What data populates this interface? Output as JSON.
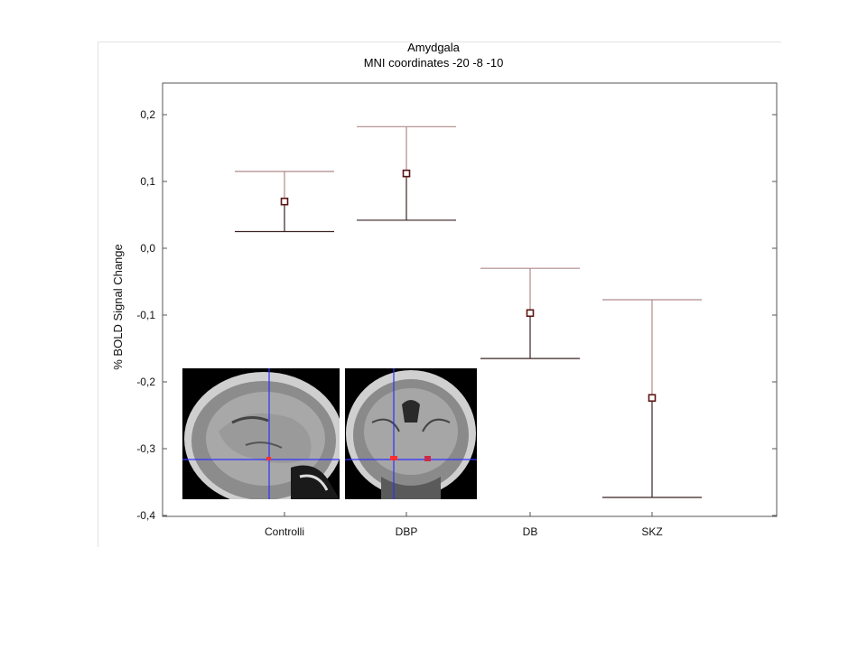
{
  "chart_data": {
    "type": "scatter",
    "title": "Amydgala",
    "subtitle": "MNI coordinates -20 -8 -10",
    "xlabel": "",
    "ylabel": "% BOLD Signal Change",
    "ylim": [
      -0.4,
      0.25
    ],
    "yticks": [
      "0,2",
      "0,1",
      "0,0",
      "-0,1",
      "-0,2",
      "-0,3",
      "-0,4"
    ],
    "ytick_values": [
      0.2,
      0.1,
      0.0,
      -0.1,
      -0.2,
      -0.3,
      -0.4
    ],
    "categories": [
      "Controlli",
      "DBP",
      "DB",
      "SKZ"
    ],
    "series": [
      {
        "values": [
          0.07,
          0.112,
          -0.097,
          -0.224
        ],
        "error_low": [
          0.025,
          0.042,
          -0.165,
          -0.373
        ],
        "error_high": [
          0.115,
          0.182,
          -0.03,
          -0.077
        ]
      }
    ],
    "grid": false,
    "legend": "none",
    "marker_color": "#5a1414",
    "errorbar_upper_color": "#b08a8a",
    "errorbar_lower_color": "#3a2323"
  },
  "inset": {
    "images": [
      "sagittal brain MRI slice with crosshair",
      "coronal brain MRI slice with crosshair"
    ],
    "crosshair_color": "#3030ff",
    "highlight_color": "#ff3030"
  }
}
